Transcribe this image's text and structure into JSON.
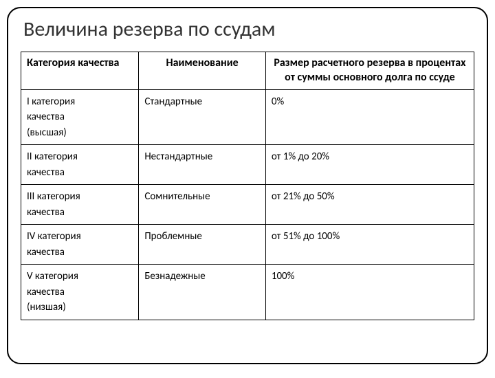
{
  "slide": {
    "title": "Величина резерва по ссудам"
  },
  "table": {
    "headers": {
      "category": "Категория качества",
      "name": "Наименование",
      "size": "Размер расчетного резерва в процентах от суммы основного долга по ссуде"
    },
    "rows": [
      {
        "category": "I категория\n  качества\n  (высшая)",
        "name": "Стандартные",
        "size": "0%"
      },
      {
        "category": "II категория\n  качества",
        "name": "Нестандартные",
        "size": "от 1% до 20%"
      },
      {
        "category": "III категория\n  качества",
        "name": "Сомнительные",
        "size": "от 21% до 50%"
      },
      {
        "category": "IV категория\n  качества",
        "name": "Проблемные",
        "size": "от 51% до 100%"
      },
      {
        "category": "V категория\n  качества\n  (низшая)",
        "name": "Безнадежные",
        "size": "100%"
      }
    ]
  },
  "styling": {
    "border_color": "#000000",
    "border_radius": 20,
    "title_fontsize": 30,
    "header_fontsize": 16,
    "cell_fontsize": 15,
    "background_color": "#ffffff",
    "column_widths": [
      "26%",
      "28%",
      "46%"
    ]
  }
}
